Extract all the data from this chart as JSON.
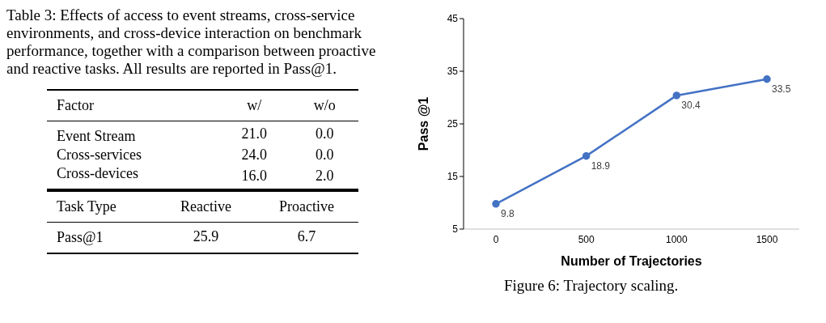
{
  "chart_data": [
    {
      "type": "other",
      "title": "Table 3: Effects of access to event streams, cross-service environments, and cross-device interaction on benchmark performance, together with a comparison between proactive and reactive tasks. All results are reported in Pass@1.",
      "xlabel": "Factor",
      "categories": [
        "Event Stream",
        "Cross-services",
        "Cross-devices"
      ],
      "series": [
        {
          "name": "w/",
          "values": [
            21.0,
            24.0,
            16.0
          ],
          "value_labels": [
            "21.0",
            "24.0",
            "16.0"
          ]
        },
        {
          "name": "w/o",
          "values": [
            0.0,
            0.0,
            2.0
          ],
          "value_labels": [
            "0.0",
            "0.0",
            "2.0"
          ]
        }
      ]
    },
    {
      "type": "other",
      "xlabel": "Task Type",
      "categories": [
        "Pass@1"
      ],
      "series": [
        {
          "name": "Reactive",
          "values": [
            25.9
          ],
          "value_labels": [
            "25.9"
          ]
        },
        {
          "name": "Proactive",
          "values": [
            6.7
          ],
          "value_labels": [
            "6.7"
          ]
        }
      ]
    },
    {
      "type": "line",
      "title": "Figure 6: Trajectory scaling.",
      "xlabel": "Number of Trajectories",
      "ylabel": "Pass @1",
      "categories": [
        "0",
        "500",
        "1000",
        "1500"
      ],
      "values": [
        9.8,
        18.9,
        30.4,
        33.5
      ],
      "color": "#4472c4",
      "ylim": [
        5,
        45
      ],
      "yticks": [
        5,
        15,
        25,
        35,
        45
      ],
      "marker": "circle",
      "data_labels": true
    }
  ]
}
